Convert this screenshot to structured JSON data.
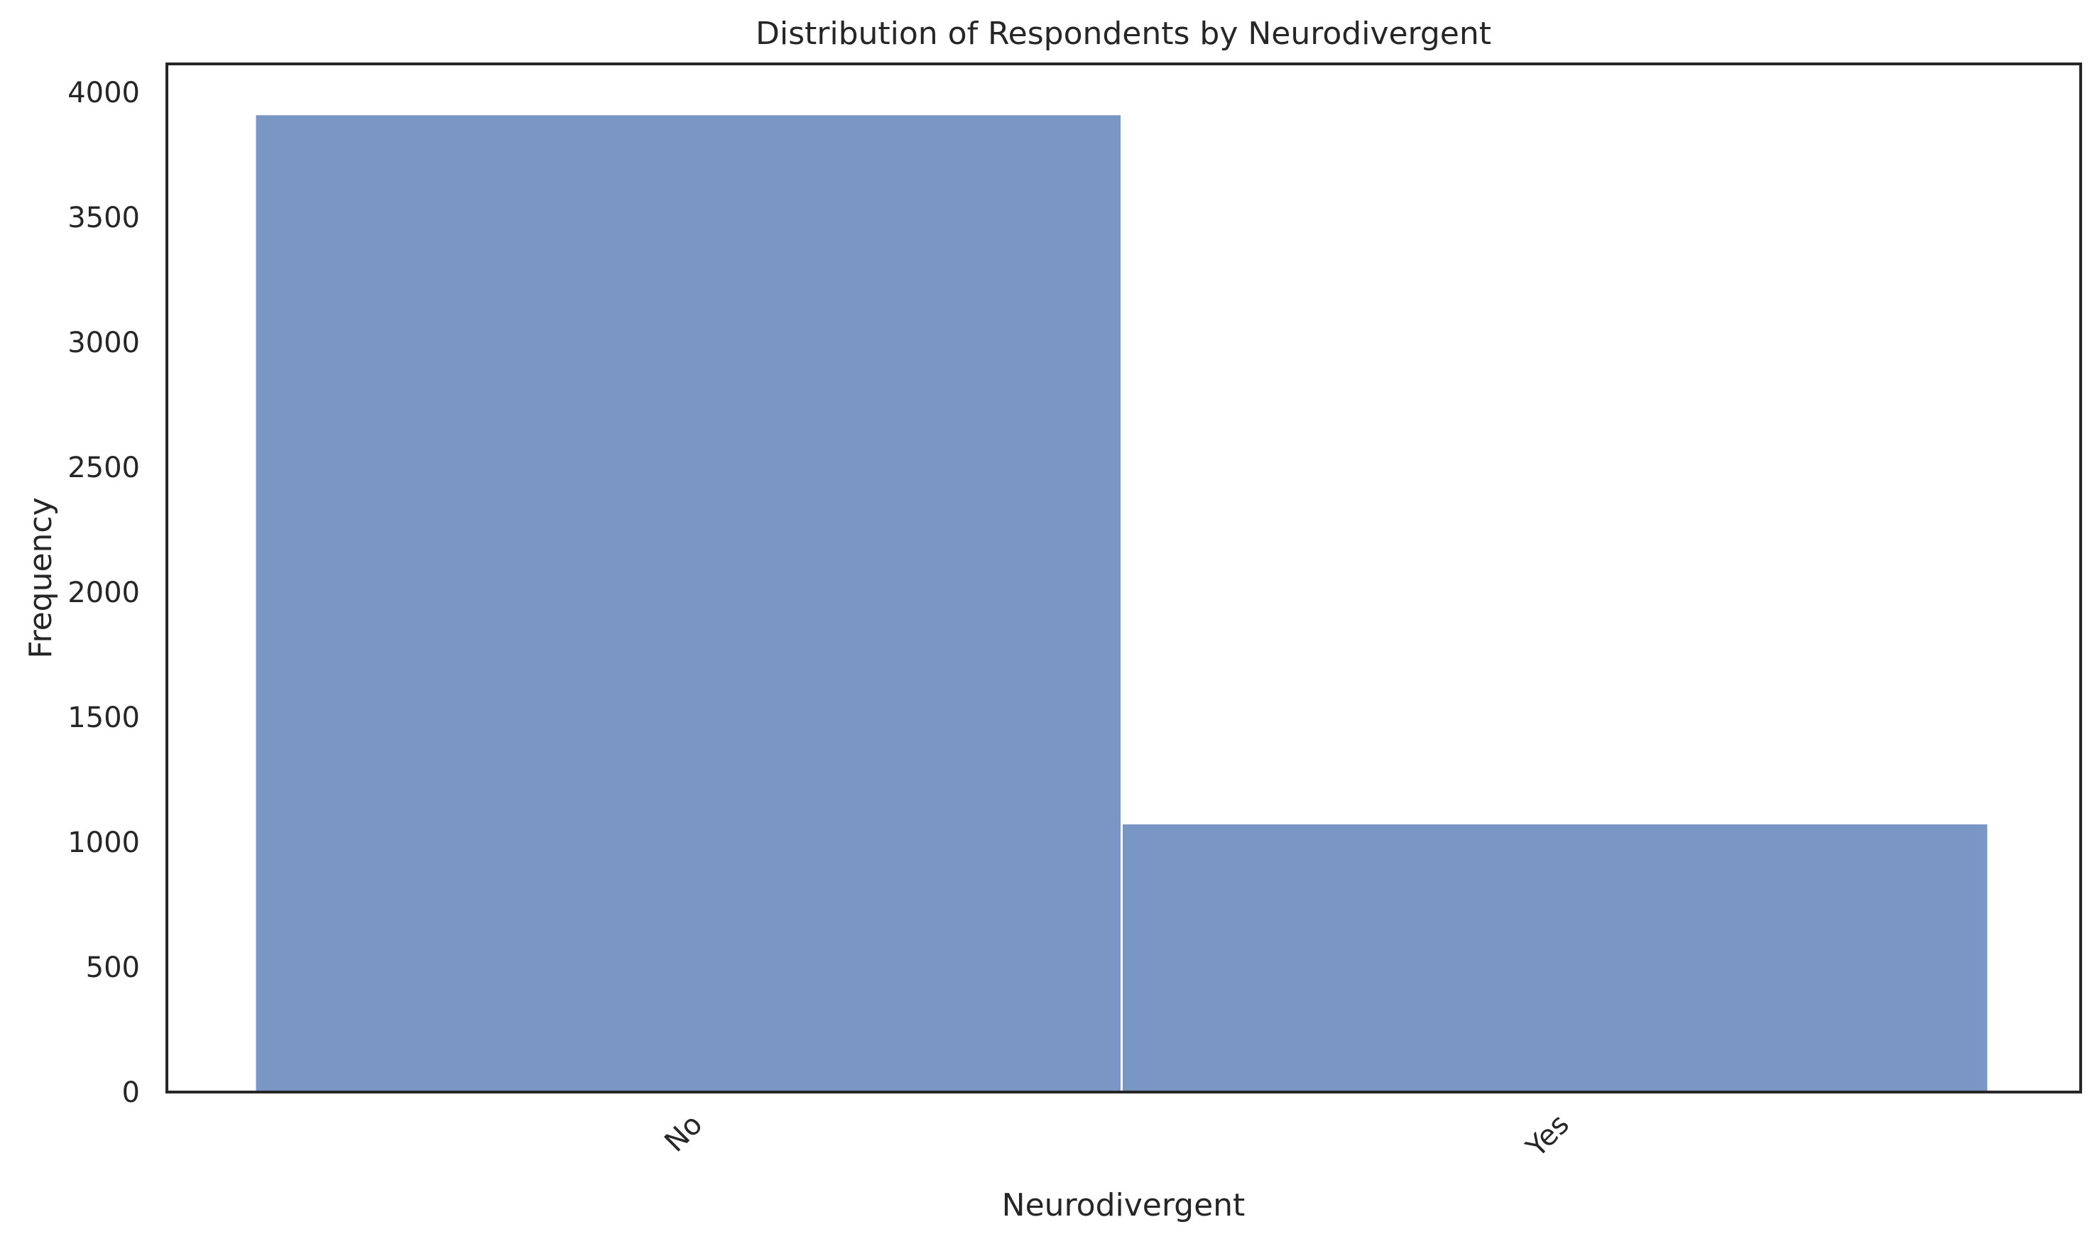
{
  "chart_data": {
    "type": "bar",
    "title": "Distribution of Respondents by Neurodivergent",
    "xlabel": "Neurodivergent",
    "ylabel": "Frequency",
    "categories": [
      "No",
      "Yes"
    ],
    "values": [
      3912,
      1075
    ],
    "ylim": [
      0,
      4113
    ],
    "yticks": [
      0,
      500,
      1000,
      1500,
      2000,
      2500,
      3000,
      3500,
      4000
    ],
    "grid": false,
    "bar_color": "#7a96c4",
    "spine_color": "#262626"
  }
}
